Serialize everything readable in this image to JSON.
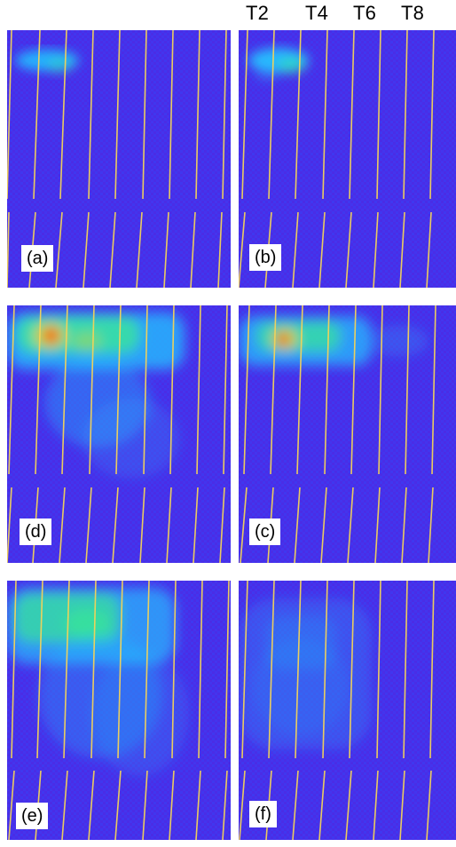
{
  "header": {
    "labels": [
      "T2",
      "T4",
      "T6",
      "T8"
    ]
  },
  "panels": {
    "a": {
      "label": "(a)"
    },
    "b": {
      "label": "(b)"
    },
    "c": {
      "label": "(c)"
    },
    "d": {
      "label": "(d)"
    },
    "e": {
      "label": "(e)"
    },
    "f": {
      "label": "(f)"
    }
  },
  "colors": {
    "background_blue": "#4a2de6",
    "noise_blue": "#2f49ff",
    "cyan": "#22c7ff",
    "green": "#3cff7a",
    "yellow": "#ffd11a",
    "red": "#ff2a00",
    "guide_line": "#f3d35a"
  }
}
